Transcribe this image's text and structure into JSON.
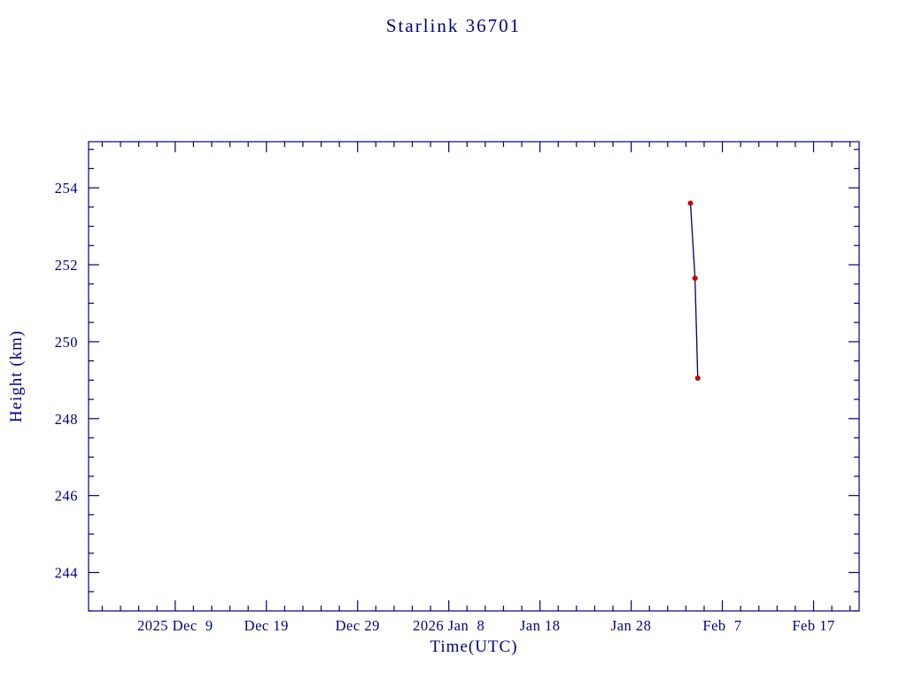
{
  "page": {
    "background_color": "#ffffff"
  },
  "chart_data": {
    "type": "line",
    "title": "Starlink 36701",
    "xlabel": "Time(UTC)",
    "ylabel": "Height (km)",
    "legend": "none",
    "grid": false,
    "colors": {
      "text": "#000080",
      "axis": "#000080",
      "line": "#000060",
      "marker": "#cc0000"
    },
    "x_axis": {
      "unit": "days since 2025 Dec 9",
      "min": -9.5,
      "max": 75,
      "major_tick_interval": 10,
      "minor_tick_interval": 2,
      "ticks": [
        {
          "t": 0,
          "label": "2025 Dec  9"
        },
        {
          "t": 10,
          "label": "Dec 19"
        },
        {
          "t": 20,
          "label": "Dec 29"
        },
        {
          "t": 30,
          "label": "2026 Jan  8"
        },
        {
          "t": 40,
          "label": "Jan 18"
        },
        {
          "t": 50,
          "label": "Jan 28"
        },
        {
          "t": 60,
          "label": "Feb  7"
        },
        {
          "t": 70,
          "label": "Feb 17"
        }
      ]
    },
    "y_axis": {
      "min": 243.0,
      "max": 255.2,
      "major_tick_interval": 2,
      "minor_tick_interval": 0.5,
      "ticks": [
        244,
        246,
        248,
        250,
        252,
        254
      ]
    },
    "series": [
      {
        "name": "height",
        "marker": "dot",
        "points": [
          {
            "t": 56.5,
            "height_km": 253.6,
            "approx_date": "2026 Feb 3"
          },
          {
            "t": 57.0,
            "height_km": 251.65,
            "approx_date": "2026 Feb 4"
          },
          {
            "t": 57.3,
            "height_km": 249.05,
            "approx_date": "2026 Feb 4"
          }
        ]
      }
    ]
  }
}
